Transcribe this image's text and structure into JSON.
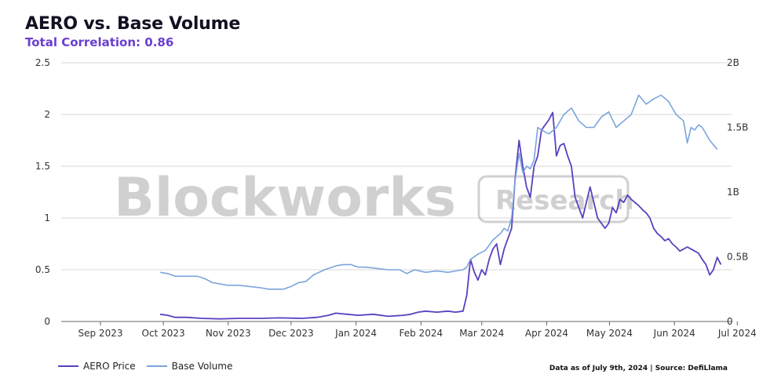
{
  "chart_data": {
    "type": "line",
    "title": "AERO vs. Base Volume",
    "subtitle": "Total Correlation: 0.86",
    "watermark": "Blockworks Research",
    "source_note": "Data as of July 9th, 2024 | Source: DefiLlama",
    "x_labels": [
      "Sep 2023",
      "Oct 2023",
      "Nov 2023",
      "Dec 2023",
      "Jan 2024",
      "Feb 2024",
      "Mar 2024",
      "Apr 2024",
      "May 2024",
      "Jun 2024",
      "Jul 2024"
    ],
    "xlim_days": [
      0,
      320
    ],
    "x_tick_days": [
      0,
      30,
      61,
      91,
      122,
      153,
      182,
      213,
      243,
      274,
      304
    ],
    "y_left": {
      "ticks": [
        0,
        0.5,
        1,
        1.5,
        2,
        2.5
      ],
      "tick_labels": [
        "0",
        "0.5",
        "1",
        "1.5",
        "2",
        "2.5"
      ],
      "range": [
        0,
        2.5
      ]
    },
    "y_right": {
      "ticks": [
        0,
        0.5,
        1,
        1.5,
        2
      ],
      "tick_labels": [
        "0",
        "0.5B",
        "1B",
        "1.5B",
        "2B"
      ],
      "range": [
        0,
        2
      ]
    },
    "grid": true,
    "legend_position": "bottom-left",
    "series": [
      {
        "name": "AERO Price",
        "axis": "left",
        "color": "#5b3fbf",
        "points": [
          [
            16,
            0.07
          ],
          [
            20,
            0.06
          ],
          [
            24,
            0.04
          ],
          [
            30,
            0.04
          ],
          [
            38,
            0.03
          ],
          [
            48,
            0.025
          ],
          [
            58,
            0.03
          ],
          [
            70,
            0.03
          ],
          [
            80,
            0.035
          ],
          [
            92,
            0.03
          ],
          [
            100,
            0.04
          ],
          [
            106,
            0.06
          ],
          [
            110,
            0.08
          ],
          [
            116,
            0.07
          ],
          [
            122,
            0.06
          ],
          [
            130,
            0.07
          ],
          [
            138,
            0.05
          ],
          [
            146,
            0.06
          ],
          [
            150,
            0.07
          ],
          [
            154,
            0.09
          ],
          [
            158,
            0.1
          ],
          [
            164,
            0.09
          ],
          [
            170,
            0.1
          ],
          [
            174,
            0.09
          ],
          [
            178,
            0.1
          ],
          [
            180,
            0.25
          ],
          [
            182,
            0.6
          ],
          [
            184,
            0.48
          ],
          [
            186,
            0.4
          ],
          [
            188,
            0.5
          ],
          [
            190,
            0.45
          ],
          [
            192,
            0.6
          ],
          [
            194,
            0.7
          ],
          [
            196,
            0.75
          ],
          [
            198,
            0.55
          ],
          [
            200,
            0.7
          ],
          [
            202,
            0.8
          ],
          [
            204,
            0.9
          ],
          [
            206,
            1.4
          ],
          [
            208,
            1.75
          ],
          [
            210,
            1.5
          ],
          [
            212,
            1.3
          ],
          [
            214,
            1.2
          ],
          [
            216,
            1.5
          ],
          [
            218,
            1.6
          ],
          [
            220,
            1.85
          ],
          [
            222,
            1.9
          ],
          [
            224,
            1.95
          ],
          [
            226,
            2.02
          ],
          [
            228,
            1.6
          ],
          [
            230,
            1.7
          ],
          [
            232,
            1.72
          ],
          [
            234,
            1.6
          ],
          [
            236,
            1.5
          ],
          [
            238,
            1.2
          ],
          [
            240,
            1.1
          ],
          [
            242,
            1.0
          ],
          [
            244,
            1.15
          ],
          [
            246,
            1.3
          ],
          [
            248,
            1.15
          ],
          [
            250,
            1.0
          ],
          [
            252,
            0.95
          ],
          [
            254,
            0.9
          ],
          [
            256,
            0.95
          ],
          [
            258,
            1.1
          ],
          [
            260,
            1.05
          ],
          [
            262,
            1.18
          ],
          [
            264,
            1.15
          ],
          [
            266,
            1.22
          ],
          [
            268,
            1.18
          ],
          [
            270,
            1.15
          ],
          [
            272,
            1.12
          ],
          [
            274,
            1.08
          ],
          [
            276,
            1.05
          ],
          [
            278,
            1.0
          ],
          [
            280,
            0.9
          ],
          [
            282,
            0.85
          ],
          [
            284,
            0.82
          ],
          [
            286,
            0.78
          ],
          [
            288,
            0.8
          ],
          [
            290,
            0.75
          ],
          [
            292,
            0.72
          ],
          [
            294,
            0.68
          ],
          [
            296,
            0.7
          ],
          [
            298,
            0.72
          ],
          [
            300,
            0.7
          ],
          [
            302,
            0.68
          ],
          [
            304,
            0.66
          ],
          [
            306,
            0.6
          ],
          [
            308,
            0.55
          ],
          [
            310,
            0.45
          ],
          [
            312,
            0.5
          ],
          [
            314,
            0.62
          ],
          [
            316,
            0.55
          ]
        ]
      },
      {
        "name": "Base Volume",
        "axis": "right",
        "color": "#7ba4dc",
        "points": [
          [
            16,
            0.38
          ],
          [
            20,
            0.37
          ],
          [
            24,
            0.35
          ],
          [
            28,
            0.35
          ],
          [
            32,
            0.35
          ],
          [
            36,
            0.35
          ],
          [
            40,
            0.33
          ],
          [
            44,
            0.3
          ],
          [
            48,
            0.29
          ],
          [
            52,
            0.28
          ],
          [
            58,
            0.28
          ],
          [
            64,
            0.27
          ],
          [
            70,
            0.26
          ],
          [
            74,
            0.25
          ],
          [
            78,
            0.25
          ],
          [
            82,
            0.25
          ],
          [
            86,
            0.27
          ],
          [
            90,
            0.3
          ],
          [
            94,
            0.31
          ],
          [
            98,
            0.36
          ],
          [
            104,
            0.4
          ],
          [
            110,
            0.43
          ],
          [
            114,
            0.44
          ],
          [
            118,
            0.44
          ],
          [
            122,
            0.42
          ],
          [
            126,
            0.42
          ],
          [
            132,
            0.41
          ],
          [
            138,
            0.4
          ],
          [
            144,
            0.4
          ],
          [
            148,
            0.37
          ],
          [
            152,
            0.4
          ],
          [
            158,
            0.38
          ],
          [
            164,
            0.39
          ],
          [
            170,
            0.38
          ],
          [
            174,
            0.39
          ],
          [
            178,
            0.4
          ],
          [
            180,
            0.42
          ],
          [
            182,
            0.48
          ],
          [
            186,
            0.52
          ],
          [
            190,
            0.55
          ],
          [
            194,
            0.63
          ],
          [
            198,
            0.68
          ],
          [
            200,
            0.72
          ],
          [
            202,
            0.7
          ],
          [
            204,
            0.8
          ],
          [
            206,
            1.1
          ],
          [
            208,
            1.3
          ],
          [
            210,
            1.15
          ],
          [
            212,
            1.2
          ],
          [
            214,
            1.18
          ],
          [
            216,
            1.25
          ],
          [
            218,
            1.5
          ],
          [
            220,
            1.48
          ],
          [
            224,
            1.45
          ],
          [
            228,
            1.5
          ],
          [
            232,
            1.6
          ],
          [
            236,
            1.65
          ],
          [
            240,
            1.55
          ],
          [
            244,
            1.5
          ],
          [
            248,
            1.5
          ],
          [
            252,
            1.58
          ],
          [
            256,
            1.62
          ],
          [
            260,
            1.5
          ],
          [
            264,
            1.55
          ],
          [
            268,
            1.6
          ],
          [
            272,
            1.75
          ],
          [
            276,
            1.68
          ],
          [
            280,
            1.72
          ],
          [
            284,
            1.75
          ],
          [
            288,
            1.7
          ],
          [
            292,
            1.6
          ],
          [
            296,
            1.55
          ],
          [
            298,
            1.38
          ],
          [
            300,
            1.5
          ],
          [
            302,
            1.48
          ],
          [
            304,
            1.52
          ],
          [
            306,
            1.5
          ],
          [
            310,
            1.4
          ],
          [
            314,
            1.33
          ]
        ]
      }
    ]
  }
}
